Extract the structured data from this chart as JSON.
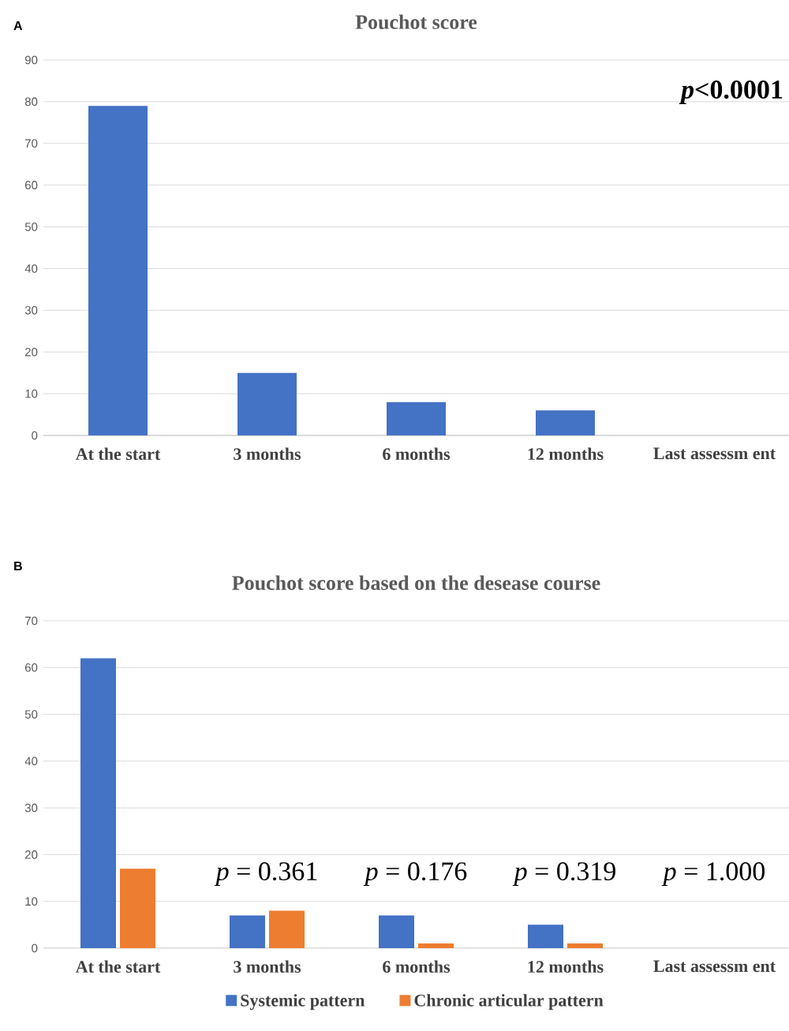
{
  "chart_data": [
    {
      "type": "bar",
      "title": "Pouchot score",
      "categories": [
        "At the start",
        "3 months",
        "6 months",
        "12 months",
        "Last assessm ent"
      ],
      "values": [
        79,
        15,
        8,
        6,
        0
      ],
      "color": "#4472c4",
      "ylim": [
        0,
        90
      ],
      "yticks": [
        0,
        10,
        20,
        30,
        40,
        50,
        60,
        70,
        80,
        90
      ],
      "grid": "y",
      "annotations": [
        "A",
        "*p*<0.0001"
      ]
    },
    {
      "type": "bar",
      "title": "Pouchot score based on the desease course",
      "categories": [
        "At the start",
        "3 months",
        "6 months",
        "12 months",
        "Last assessm ent"
      ],
      "series": [
        {
          "name": "Systemic pattern",
          "color": "#4472c4",
          "values": [
            62,
            7,
            7,
            5,
            0
          ]
        },
        {
          "name": "Chronic articular pattern",
          "color": "#ed7d31",
          "values": [
            17,
            8,
            1,
            1,
            0
          ]
        }
      ],
      "ylim": [
        0,
        70
      ],
      "yticks": [
        0,
        10,
        20,
        30,
        40,
        50,
        60,
        70
      ],
      "grid": "y",
      "legend": "bottom",
      "annotations": [
        "B",
        "*p* = 0.361",
        "*p* = 0.176",
        "*p* = 0.319",
        "*p* = 1.000"
      ]
    }
  ]
}
